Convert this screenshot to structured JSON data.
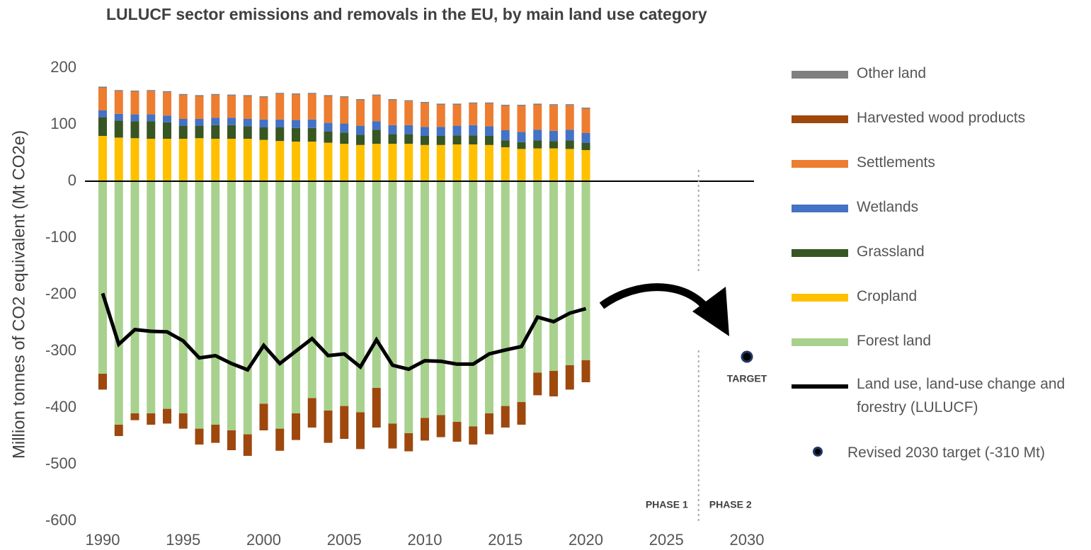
{
  "chart_data": {
    "type": "bar",
    "title": "LULUCF sector emissions and removals in the EU, by main land use category",
    "y_label": "Million tonnes of CO2 equivalent (Mt CO2e)",
    "x": [
      1990,
      1991,
      1992,
      1993,
      1994,
      1995,
      1996,
      1997,
      1998,
      1999,
      2000,
      2001,
      2002,
      2003,
      2004,
      2005,
      2006,
      2007,
      2008,
      2009,
      2010,
      2011,
      2012,
      2013,
      2014,
      2015,
      2016,
      2017,
      2018,
      2019,
      2020
    ],
    "xlim": [
      1990,
      2030
    ],
    "xticks": [
      1990,
      1995,
      2000,
      2005,
      2010,
      2015,
      2020,
      2025,
      2030
    ],
    "ylim": [
      -600,
      200
    ],
    "yticks": [
      -600,
      -500,
      -400,
      -300,
      -200,
      -100,
      0,
      100,
      200
    ],
    "series": [
      {
        "name": "Forest land",
        "color": "#a9d18e",
        "values": [
          -340,
          -430,
          -410,
          -410,
          -402,
          -410,
          -437,
          -430,
          -440,
          -447,
          -393,
          -437,
          -410,
          -383,
          -405,
          -397,
          -408,
          -365,
          -428,
          -445,
          -418,
          -413,
          -425,
          -433,
          -410,
          -397,
          -390,
          -338,
          -335,
          -325,
          -316
        ]
      },
      {
        "name": "Cropland",
        "color": "#ffc000",
        "values": [
          80,
          77,
          76,
          75,
          75,
          75,
          76,
          75,
          75,
          75,
          73,
          71,
          70,
          70,
          68,
          66,
          64,
          66,
          66,
          66,
          64,
          64,
          65,
          65,
          64,
          60,
          57,
          58,
          58,
          57,
          55
        ]
      },
      {
        "name": "Grassland",
        "color": "#375623",
        "values": [
          33,
          30,
          30,
          31,
          29,
          23,
          22,
          24,
          24,
          22,
          22,
          24,
          24,
          24,
          20,
          20,
          18,
          25,
          17,
          17,
          16,
          16,
          16,
          16,
          16,
          12,
          12,
          14,
          13,
          15,
          13
        ]
      },
      {
        "name": "Wetlands",
        "color": "#4472c4",
        "values": [
          12,
          12,
          12,
          12,
          12,
          12,
          12,
          13,
          13,
          13,
          14,
          14,
          14,
          15,
          15,
          16,
          16,
          15,
          16,
          16,
          16,
          16,
          17,
          18,
          17,
          18,
          18,
          19,
          18,
          19,
          17
        ]
      },
      {
        "name": "Settlements",
        "color": "#ed7d31",
        "values": [
          40,
          40,
          40,
          41,
          41,
          42,
          40,
          40,
          39,
          40,
          39,
          45,
          45,
          45,
          47,
          46,
          45,
          45,
          44,
          42,
          42,
          39,
          37,
          38,
          40,
          43,
          46,
          44,
          45,
          43,
          43
        ]
      },
      {
        "name": "Harvested wood products",
        "color": "#9e480e",
        "values": [
          -28,
          -20,
          -12,
          -20,
          -26,
          -27,
          -28,
          -32,
          -35,
          -38,
          -47,
          -39,
          -47,
          -52,
          -57,
          -58,
          -65,
          -70,
          -44,
          -32,
          -40,
          -39,
          -35,
          -32,
          -37,
          -38,
          -40,
          -40,
          -45,
          -43,
          -39
        ]
      },
      {
        "name": "Other land",
        "color": "#7f7f7f",
        "values": [
          2,
          2,
          2,
          2,
          2,
          2,
          2,
          2,
          2,
          2,
          2,
          2,
          2,
          2,
          2,
          2,
          2,
          2,
          2,
          2,
          2,
          2,
          2,
          2,
          2,
          2,
          2,
          2,
          2,
          2,
          2
        ]
      },
      {
        "name": "Land use, land-use change and forestry (LULUCF)",
        "type": "line",
        "color": "#000000",
        "values": [
          -198,
          -288,
          -262,
          -265,
          -266,
          -282,
          -312,
          -308,
          -322,
          -333,
          -290,
          -322,
          -300,
          -278,
          -308,
          -305,
          -328,
          -280,
          -325,
          -332,
          -317,
          -318,
          -323,
          -323,
          -305,
          -298,
          -292,
          -240,
          -248,
          -233,
          -225
        ]
      }
    ],
    "target": {
      "name": "Revised 2030 target (-310 Mt)",
      "label": "TARGET",
      "x": 2030,
      "value": -310
    },
    "phase_boundary": 2027,
    "phases": [
      "PHASE 1",
      "PHASE 2"
    ]
  }
}
